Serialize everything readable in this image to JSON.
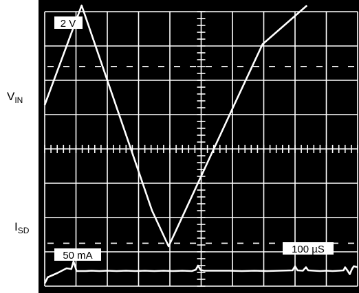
{
  "chart_data": {
    "type": "oscilloscope",
    "grid": true,
    "divisions": {
      "x": 10,
      "y": 8
    },
    "channels": [
      {
        "name": "VIN",
        "label_main": "V",
        "label_sub": "IN",
        "scale_label": "2 V",
        "color": "#ffffff",
        "ground_div_from_top": 1.6,
        "points_div": [
          [
            0,
            5.28
          ],
          [
            1.18,
            8.18
          ],
          [
            3.43,
            2.2
          ],
          [
            3.96,
            1.16
          ],
          [
            6.06,
            5.29
          ],
          [
            6.96,
            7.05
          ],
          [
            8.38,
            8.18
          ]
        ]
      },
      {
        "name": "ISD",
        "label_main": "I",
        "label_sub": "SD",
        "scale_label": "50 mA",
        "color": "#ffffff",
        "ground_div_from_top": 6.75,
        "points_div": [
          [
            0,
            0.08
          ],
          [
            0.1,
            0.26
          ],
          [
            0.25,
            0.32
          ],
          [
            0.4,
            0.38
          ],
          [
            0.55,
            0.45
          ],
          [
            0.7,
            0.52
          ],
          [
            0.85,
            0.5
          ],
          [
            0.92,
            0.72
          ],
          [
            1.02,
            0.44
          ],
          [
            1.15,
            0.44
          ],
          [
            1.3,
            0.44
          ],
          [
            1.5,
            0.45
          ],
          [
            1.75,
            0.44
          ],
          [
            2.0,
            0.45
          ],
          [
            2.3,
            0.44
          ],
          [
            2.6,
            0.45
          ],
          [
            2.9,
            0.44
          ],
          [
            3.2,
            0.45
          ],
          [
            3.5,
            0.44
          ],
          [
            3.8,
            0.45
          ],
          [
            4.1,
            0.44
          ],
          [
            4.4,
            0.45
          ],
          [
            4.7,
            0.44
          ],
          [
            4.83,
            0.48
          ],
          [
            4.9,
            0.6
          ],
          [
            4.98,
            0.47
          ],
          [
            5.1,
            0.45
          ],
          [
            5.5,
            0.45
          ],
          [
            5.9,
            0.45
          ],
          [
            6.3,
            0.44
          ],
          [
            6.7,
            0.45
          ],
          [
            7.1,
            0.44
          ],
          [
            7.5,
            0.45
          ],
          [
            7.92,
            0.46
          ],
          [
            8.0,
            0.58
          ],
          [
            8.08,
            0.46
          ],
          [
            8.25,
            0.45
          ],
          [
            8.35,
            0.55
          ],
          [
            8.42,
            0.46
          ],
          [
            8.6,
            0.45
          ],
          [
            8.8,
            0.44
          ],
          [
            9.0,
            0.45
          ],
          [
            9.2,
            0.44
          ],
          [
            9.4,
            0.45
          ],
          [
            9.55,
            0.46
          ],
          [
            9.6,
            0.55
          ],
          [
            9.68,
            0.45
          ],
          [
            9.75,
            0.35
          ],
          [
            9.82,
            0.5
          ],
          [
            9.88,
            0.58
          ],
          [
            10,
            0.55
          ]
        ]
      }
    ],
    "time_scale_label": "100 µS"
  }
}
